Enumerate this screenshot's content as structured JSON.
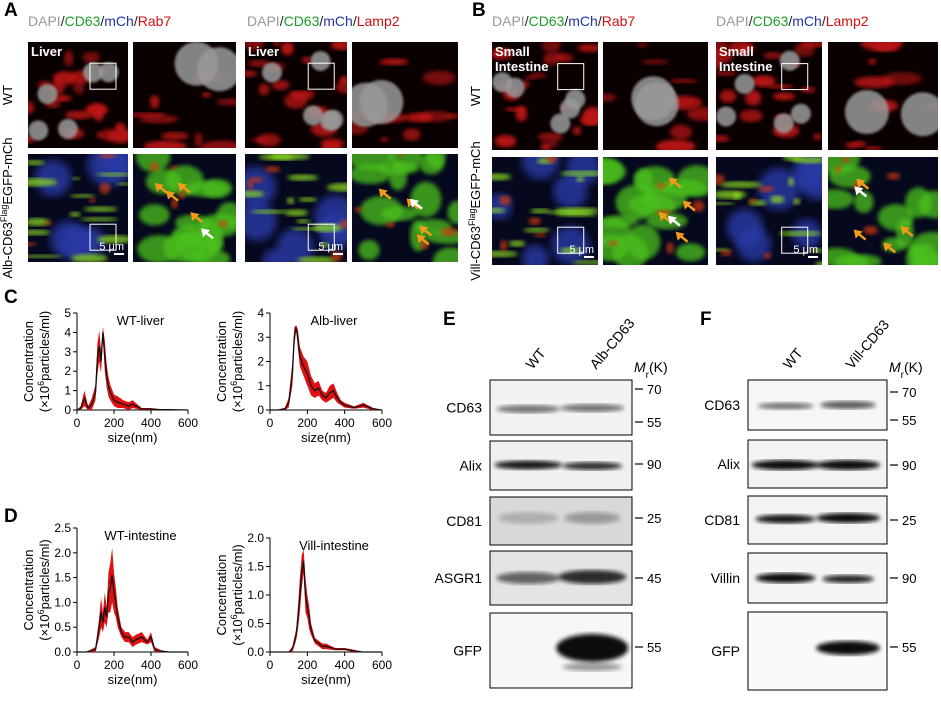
{
  "panel_a": {
    "label": "A",
    "headers": [
      [
        "DAPI",
        "/",
        "CD63",
        "/",
        "mCh",
        "/",
        "Rab7"
      ],
      [
        "DAPI",
        "/",
        "CD63",
        "/",
        "mCh",
        "/",
        "Lamp2"
      ]
    ],
    "tissue_labels": [
      [
        "Liver"
      ],
      [
        "Liver"
      ]
    ],
    "row_labels": [
      [
        "WT"
      ],
      [
        "Alb-CD63",
        "Flag",
        "EGFP-mCh"
      ]
    ],
    "scale_bars": [
      "5 μm",
      "5 μm"
    ]
  },
  "panel_b": {
    "label": "B",
    "headers": [
      [
        "DAPI",
        "/",
        "CD63",
        "/",
        "mCh",
        "/",
        "Rab7"
      ],
      [
        "DAPI",
        "/",
        "CD63",
        "/",
        "mCh",
        "/",
        "Lamp2"
      ]
    ],
    "tissue_labels": [
      [
        "Small",
        "Intestine"
      ],
      [
        "Small",
        "Intestine"
      ]
    ],
    "row_labels": [
      [
        "WT"
      ],
      [
        "Vill-CD63",
        "Flag",
        "EGFP-mCh"
      ]
    ],
    "scale_bars": [
      "5 μm",
      "5 μm"
    ]
  },
  "panel_c": {
    "label": "C",
    "plots": [
      {
        "title": "WT-liver",
        "y_label": [
          "Concentration",
          "(×10",
          "6",
          "particles/ml)"
        ],
        "x_label": "size(nm)",
        "xlim": [
          0,
          600
        ],
        "xticks": [
          0,
          200,
          400,
          600
        ],
        "ylim": [
          0,
          5
        ],
        "yticks": [
          0,
          1,
          2,
          3,
          4,
          5
        ],
        "x": [
          0,
          20,
          40,
          60,
          80,
          100,
          110,
          120,
          130,
          140,
          150,
          160,
          170,
          180,
          200,
          220,
          250,
          280,
          300,
          350,
          400,
          450,
          500,
          600
        ],
        "values": [
          0,
          0.1,
          0.6,
          0.1,
          0.3,
          0.9,
          2.6,
          3.3,
          2.5,
          4.0,
          2.8,
          1.8,
          1.2,
          0.9,
          0.5,
          0.4,
          0.3,
          0.2,
          0.3,
          0.05,
          0.05,
          0.02,
          0.02,
          0
        ],
        "error": [
          0,
          0.1,
          0.4,
          0.1,
          0.3,
          0.4,
          0.8,
          0.8,
          0.6,
          0.3,
          0.8,
          0.6,
          0.5,
          0.4,
          0.3,
          0.3,
          0.2,
          0.2,
          0.2,
          0.05,
          0.05,
          0.02,
          0.02,
          0
        ]
      },
      {
        "title": "Alb-liver",
        "y_label": [
          "Concentration",
          "(×10",
          "6",
          "particles/ml)"
        ],
        "x_label": "size(nm)",
        "xlim": [
          0,
          600
        ],
        "xticks": [
          0,
          200,
          400,
          600
        ],
        "ylim": [
          0,
          4
        ],
        "yticks": [
          0,
          1,
          2,
          3,
          4
        ],
        "x": [
          0,
          40,
          80,
          100,
          120,
          130,
          140,
          150,
          160,
          180,
          200,
          220,
          240,
          260,
          280,
          300,
          320,
          340,
          360,
          380,
          400,
          450,
          500,
          550,
          600
        ],
        "values": [
          0,
          0,
          0.05,
          0.3,
          1.5,
          3.0,
          3.4,
          2.9,
          2.2,
          1.8,
          1.5,
          1.0,
          0.8,
          0.9,
          0.6,
          0.5,
          0.7,
          0.8,
          0.5,
          0.3,
          0.2,
          0.1,
          0.2,
          0.05,
          0
        ],
        "error": [
          0,
          0,
          0.05,
          0.2,
          0.5,
          0.4,
          0.1,
          0.4,
          0.4,
          0.4,
          0.5,
          0.4,
          0.3,
          0.3,
          0.2,
          0.2,
          0.3,
          0.3,
          0.2,
          0.1,
          0.1,
          0.05,
          0.1,
          0.05,
          0
        ]
      }
    ]
  },
  "panel_d": {
    "label": "D",
    "plots": [
      {
        "title": "WT-intestine",
        "y_label": [
          "Concentration",
          "(×10",
          "6",
          "particles/ml)"
        ],
        "x_label": "size(nm)",
        "xlim": [
          0,
          600
        ],
        "xticks": [
          0,
          200,
          400,
          600
        ],
        "ylim": [
          0,
          2.5
        ],
        "yticks": [
          {
            "value": 0,
            "label": "0.0"
          },
          0.5,
          {
            "value": 1,
            "label": "1.0"
          },
          1.5,
          {
            "value": 2,
            "label": "2.0"
          },
          2.5
        ],
        "x": [
          0,
          50,
          100,
          120,
          130,
          140,
          150,
          160,
          170,
          180,
          190,
          200,
          210,
          220,
          240,
          260,
          280,
          300,
          320,
          350,
          380,
          400,
          420,
          450,
          500,
          600
        ],
        "values": [
          0,
          0,
          0.05,
          0.5,
          0.8,
          0.6,
          0.9,
          0.7,
          1.2,
          1.3,
          1.55,
          1.2,
          1.0,
          0.7,
          0.4,
          0.3,
          0.3,
          0.2,
          0.25,
          0.3,
          0.2,
          0.3,
          0.05,
          0.02,
          0,
          0
        ],
        "error": [
          0,
          0,
          0.05,
          0.2,
          0.3,
          0.2,
          0.3,
          0.2,
          0.4,
          0.5,
          0.55,
          0.4,
          0.3,
          0.2,
          0.1,
          0.1,
          0.1,
          0.1,
          0.1,
          0.1,
          0.05,
          0.1,
          0.05,
          0.02,
          0,
          0
        ]
      },
      {
        "title": "Vill-intestine",
        "y_label": [
          "Concentration",
          "(×10",
          "6",
          "particles/ml)"
        ],
        "x_label": "size(nm)",
        "xlim": [
          0,
          600
        ],
        "xticks": [
          0,
          200,
          400,
          600
        ],
        "ylim": [
          0,
          2
        ],
        "yticks": [
          {
            "value": 0,
            "label": "0.0"
          },
          0.5,
          {
            "value": 1,
            "label": "1.0"
          },
          1.5,
          {
            "value": 2,
            "label": "2.0"
          }
        ],
        "x": [
          0,
          50,
          100,
          120,
          140,
          150,
          160,
          170,
          180,
          190,
          200,
          210,
          220,
          240,
          260,
          280,
          300,
          350,
          400,
          450,
          500,
          600
        ],
        "values": [
          0,
          0,
          0,
          0.05,
          0.3,
          0.6,
          1.0,
          1.4,
          1.6,
          1.0,
          0.8,
          0.6,
          0.4,
          0.2,
          0.15,
          0.1,
          0.1,
          0.05,
          0.05,
          0.02,
          0,
          0
        ],
        "error": [
          0,
          0,
          0,
          0.05,
          0.1,
          0.2,
          0.3,
          0.3,
          0.2,
          0.3,
          0.2,
          0.2,
          0.1,
          0.05,
          0.05,
          0.05,
          0.05,
          0.02,
          0.02,
          0.02,
          0,
          0
        ]
      }
    ]
  },
  "panel_e": {
    "label": "E",
    "columns": [
      "WT",
      "Alb-CD63"
    ],
    "mw_header": [
      "M",
      "r",
      "(K)"
    ],
    "rows": [
      {
        "label": "CD63",
        "markers": [
          70,
          55
        ]
      },
      {
        "label": "Alix",
        "markers": [
          90
        ]
      },
      {
        "label": "CD81",
        "markers": [
          25
        ]
      },
      {
        "label": "ASGR1",
        "markers": [
          45
        ]
      },
      {
        "label": "GFP",
        "markers": [
          55
        ]
      }
    ]
  },
  "panel_f": {
    "label": "F",
    "columns": [
      "WT",
      "Vill-CD63"
    ],
    "mw_header": [
      "M",
      "r",
      "(K)"
    ],
    "rows": [
      {
        "label": "CD63",
        "markers": [
          70,
          55
        ]
      },
      {
        "label": "Alix",
        "markers": [
          90
        ]
      },
      {
        "label": "CD81",
        "markers": [
          25
        ]
      },
      {
        "label": "Villin",
        "markers": [
          90
        ]
      },
      {
        "label": "GFP",
        "markers": [
          55
        ]
      }
    ]
  }
}
